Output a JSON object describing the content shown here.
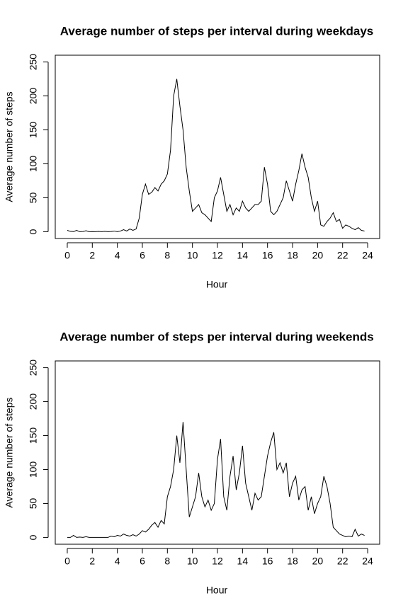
{
  "chart_data": [
    {
      "type": "line",
      "title": "Average number of steps per interval during weekdays",
      "xlabel": "Hour",
      "ylabel": "Average number of steps",
      "x": [
        0,
        0.25,
        0.5,
        0.75,
        1,
        1.25,
        1.5,
        1.75,
        2,
        2.25,
        2.5,
        2.75,
        3,
        3.25,
        3.5,
        3.75,
        4,
        4.25,
        4.5,
        4.75,
        5,
        5.25,
        5.5,
        5.75,
        6,
        6.25,
        6.5,
        6.75,
        7,
        7.25,
        7.5,
        7.75,
        8,
        8.25,
        8.5,
        8.75,
        9,
        9.25,
        9.5,
        9.75,
        10,
        10.25,
        10.5,
        10.75,
        11,
        11.25,
        11.5,
        11.75,
        12,
        12.25,
        12.5,
        12.75,
        13,
        13.25,
        13.5,
        13.75,
        14,
        14.25,
        14.5,
        14.75,
        15,
        15.25,
        15.5,
        15.75,
        16,
        16.25,
        16.5,
        16.75,
        17,
        17.25,
        17.5,
        17.75,
        18,
        18.25,
        18.5,
        18.75,
        19,
        19.25,
        19.5,
        19.75,
        20,
        20.25,
        20.5,
        20.75,
        21,
        21.25,
        21.5,
        21.75,
        22,
        22.25,
        22.5,
        22.75,
        23,
        23.25,
        23.5,
        23.75
      ],
      "series": [
        {
          "color": "#000000",
          "values": [
            2,
            0.5,
            0.2,
            2,
            0,
            0.3,
            1.5,
            0,
            0.2,
            0,
            0.4,
            0,
            0.5,
            0,
            0.3,
            1,
            0,
            1,
            3,
            1,
            4,
            2,
            4,
            20,
            55,
            70,
            55,
            58,
            65,
            60,
            70,
            75,
            85,
            120,
            200,
            225,
            185,
            150,
            95,
            60,
            30,
            35,
            40,
            28,
            25,
            20,
            15,
            50,
            60,
            80,
            55,
            30,
            40,
            25,
            35,
            30,
            45,
            35,
            30,
            35,
            40,
            40,
            45,
            95,
            70,
            30,
            25,
            30,
            40,
            50,
            75,
            60,
            45,
            70,
            90,
            115,
            95,
            80,
            50,
            30,
            45,
            10,
            8,
            15,
            20,
            28,
            15,
            18,
            5,
            10,
            8,
            5,
            3,
            6,
            2,
            1
          ]
        }
      ],
      "xlim": [
        -0.96,
        24.96
      ],
      "ylim": [
        -10,
        260
      ],
      "xticks": [
        0,
        2,
        4,
        6,
        8,
        10,
        12,
        14,
        16,
        18,
        20,
        22,
        24
      ],
      "yticks": [
        0,
        50,
        100,
        150,
        200,
        250
      ]
    },
    {
      "type": "line",
      "title": "Average number of steps per interval during weekends",
      "xlabel": "Hour",
      "ylabel": "Average number of steps",
      "x": [
        0,
        0.25,
        0.5,
        0.75,
        1,
        1.25,
        1.5,
        1.75,
        2,
        2.25,
        2.5,
        2.75,
        3,
        3.25,
        3.5,
        3.75,
        4,
        4.25,
        4.5,
        4.75,
        5,
        5.25,
        5.5,
        5.75,
        6,
        6.25,
        6.5,
        6.75,
        7,
        7.25,
        7.5,
        7.75,
        8,
        8.25,
        8.5,
        8.75,
        9,
        9.25,
        9.5,
        9.75,
        10,
        10.25,
        10.5,
        10.75,
        11,
        11.25,
        11.5,
        11.75,
        12,
        12.25,
        12.5,
        12.75,
        13,
        13.25,
        13.5,
        13.75,
        14,
        14.25,
        14.5,
        14.75,
        15,
        15.25,
        15.5,
        15.75,
        16,
        16.25,
        16.5,
        16.75,
        17,
        17.25,
        17.5,
        17.75,
        18,
        18.25,
        18.5,
        18.75,
        19,
        19.25,
        19.5,
        19.75,
        20,
        20.25,
        20.5,
        20.75,
        21,
        21.25,
        21.5,
        21.75,
        22,
        22.25,
        22.5,
        22.75,
        23,
        23.25,
        23.5,
        23.75
      ],
      "series": [
        {
          "color": "#000000",
          "values": [
            0,
            0,
            3,
            0,
            0.5,
            0,
            1,
            0,
            0,
            0,
            0,
            0,
            0,
            0,
            2,
            1,
            3,
            2,
            5,
            3,
            2,
            4,
            2,
            5,
            10,
            8,
            12,
            18,
            22,
            15,
            25,
            20,
            60,
            75,
            100,
            150,
            110,
            170,
            100,
            30,
            45,
            60,
            95,
            60,
            45,
            55,
            40,
            50,
            115,
            145,
            60,
            40,
            90,
            120,
            70,
            95,
            135,
            80,
            60,
            40,
            65,
            55,
            60,
            90,
            120,
            140,
            155,
            100,
            110,
            95,
            110,
            60,
            80,
            90,
            55,
            70,
            75,
            40,
            60,
            35,
            50,
            60,
            90,
            75,
            50,
            15,
            10,
            5,
            3,
            1,
            2,
            1,
            12,
            2,
            5,
            3
          ]
        }
      ],
      "xlim": [
        -0.96,
        24.96
      ],
      "ylim": [
        -10,
        260
      ],
      "xticks": [
        0,
        2,
        4,
        6,
        8,
        10,
        12,
        14,
        16,
        18,
        20,
        22,
        24
      ],
      "yticks": [
        0,
        50,
        100,
        150,
        200,
        250
      ]
    }
  ]
}
